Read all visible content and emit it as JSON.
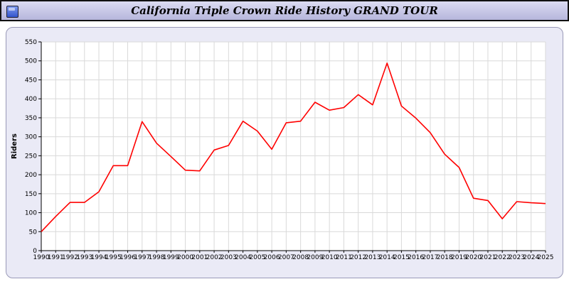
{
  "title": "California Triple Crown Ride History GRAND TOUR",
  "colors": {
    "titlebar_bg_top": "#dcdcf2",
    "titlebar_bg_bottom": "#b6b6dc",
    "titlebar_border": "#111111",
    "panel_bg": "#eaeaf6",
    "panel_border": "#9a9ab8",
    "plot_bg": "#ffffff",
    "grid": "#d9d9d9",
    "axis": "#000000",
    "line": "#ff0000",
    "icon_blue": "#3355cc"
  },
  "chart_data": {
    "type": "line",
    "title": "California Triple Crown Ride History GRAND TOUR",
    "xlabel": "",
    "ylabel": "Riders",
    "ylim": [
      0,
      550
    ],
    "ytick_step": 50,
    "grid": true,
    "legend": "none",
    "categories": [
      1990,
      1991,
      1992,
      1993,
      1994,
      1995,
      1996,
      1997,
      1998,
      1999,
      2000,
      2001,
      2002,
      2003,
      2004,
      2005,
      2006,
      2007,
      2008,
      2009,
      2010,
      2011,
      2012,
      2013,
      2014,
      2015,
      2016,
      2017,
      2018,
      2019,
      2020,
      2021,
      2022,
      2023,
      2024,
      2025
    ],
    "series_name": "Riders",
    "values": [
      50,
      90,
      127,
      127,
      155,
      224,
      224,
      340,
      283,
      248,
      212,
      210,
      265,
      277,
      341,
      315,
      267,
      337,
      341,
      391,
      370,
      377,
      411,
      384,
      494,
      381,
      349,
      311,
      254,
      219,
      138,
      132,
      84,
      129,
      126,
      124
    ]
  }
}
